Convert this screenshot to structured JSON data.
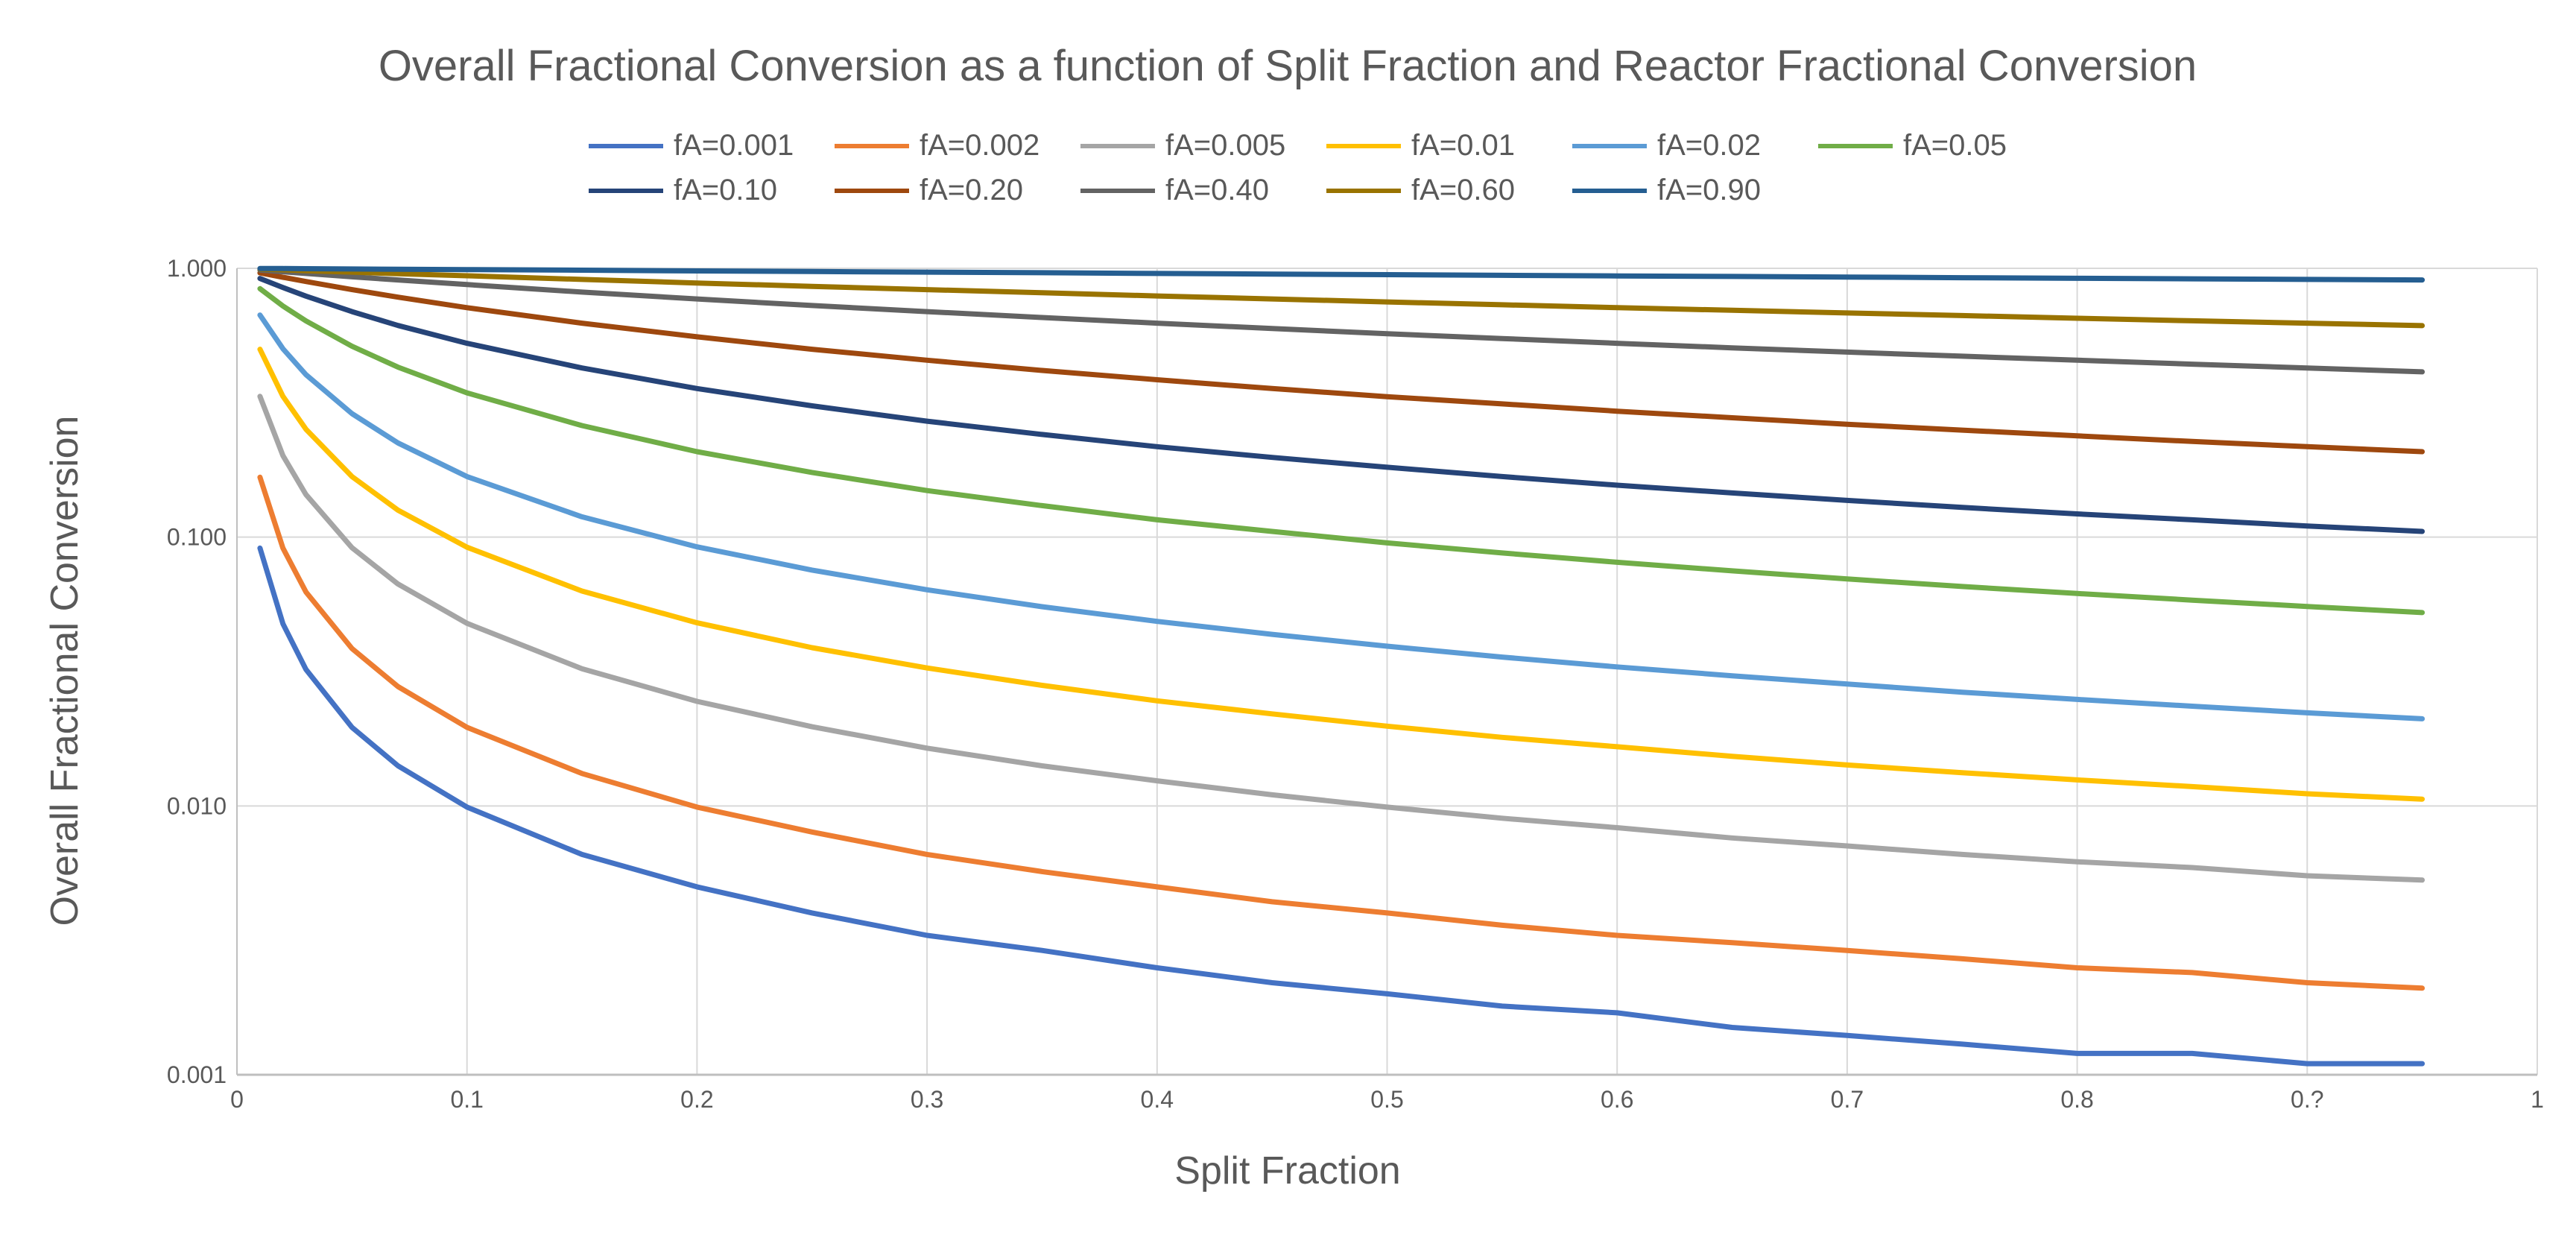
{
  "chart_data": {
    "type": "line",
    "title": "Overall Fractional Conversion as a function of Split Fraction and Reactor Fractional Conversion",
    "xlabel": "Split Fraction",
    "ylabel": "Overall Fractional Conversion",
    "xlim": [
      0,
      1
    ],
    "ylim": [
      0.001,
      1
    ],
    "yscale": "log",
    "grid": true,
    "legend_position": "top",
    "x_tick_labels": [
      "0",
      "0.1",
      "0.2",
      "0.3",
      "0.4",
      "0.5",
      "0.6",
      "0.7",
      "0.8",
      "0.?",
      "1"
    ],
    "y_tick_labels": [
      "0.001",
      "0.010",
      "0.100",
      "1.000"
    ],
    "x": [
      0.01,
      0.02,
      0.03,
      0.05,
      0.07,
      0.1,
      0.15,
      0.2,
      0.25,
      0.3,
      0.35,
      0.4,
      0.45,
      0.5,
      0.55,
      0.6,
      0.65,
      0.7,
      0.75,
      0.8,
      0.85,
      0.9,
      0.95
    ],
    "series": [
      {
        "name": "fA=0.001",
        "color": "#4472C4",
        "values": [
          0.091,
          0.0476,
          0.0322,
          0.0196,
          0.0141,
          0.0099,
          0.0066,
          0.005,
          0.004,
          0.0033,
          0.0029,
          0.0025,
          0.0022,
          0.002,
          0.0018,
          0.0017,
          0.0015,
          0.0014,
          0.0013,
          0.0012,
          0.0012,
          0.0011,
          0.0011
        ]
      },
      {
        "name": "fA=0.002",
        "color": "#ED7D31",
        "values": [
          0.167,
          0.091,
          0.0625,
          0.0385,
          0.0278,
          0.0196,
          0.0132,
          0.0099,
          0.008,
          0.0066,
          0.0057,
          0.005,
          0.0044,
          0.004,
          0.0036,
          0.0033,
          0.0031,
          0.0029,
          0.0027,
          0.0025,
          0.0024,
          0.0022,
          0.0021
        ]
      },
      {
        "name": "fA=0.005",
        "color": "#A5A5A5",
        "values": [
          0.334,
          0.201,
          0.144,
          0.0913,
          0.0669,
          0.0478,
          0.0324,
          0.0245,
          0.0197,
          0.0164,
          0.0141,
          0.0124,
          0.011,
          0.0099,
          0.009,
          0.0083,
          0.0076,
          0.0071,
          0.0066,
          0.0062,
          0.0059,
          0.0055,
          0.0053
        ]
      },
      {
        "name": "fA=0.01",
        "color": "#FFC000",
        "values": [
          0.5,
          0.334,
          0.252,
          0.168,
          0.126,
          0.0917,
          0.063,
          0.048,
          0.0388,
          0.0326,
          0.0281,
          0.0246,
          0.022,
          0.0198,
          0.018,
          0.0166,
          0.0153,
          0.0142,
          0.0133,
          0.0125,
          0.0118,
          0.0111,
          0.0106
        ]
      },
      {
        "name": "fA=0.02",
        "color": "#5B9BD5",
        "values": [
          0.67,
          0.502,
          0.402,
          0.288,
          0.224,
          0.168,
          0.119,
          0.092,
          0.0754,
          0.0637,
          0.0551,
          0.0486,
          0.0435,
          0.0393,
          0.0358,
          0.0329,
          0.0305,
          0.0284,
          0.0265,
          0.0249,
          0.0235,
          0.0222,
          0.0211
        ]
      },
      {
        "name": "fA=0.05",
        "color": "#70AD47",
        "values": [
          0.84,
          0.724,
          0.637,
          0.513,
          0.429,
          0.344,
          0.26,
          0.208,
          0.174,
          0.149,
          0.131,
          0.116,
          0.105,
          0.0952,
          0.0873,
          0.0806,
          0.0749,
          0.0699,
          0.0655,
          0.0617,
          0.0583,
          0.0552,
          0.0524
        ]
      },
      {
        "name": "fA=0.10",
        "color": "#264478",
        "values": [
          0.917,
          0.848,
          0.788,
          0.69,
          0.613,
          0.526,
          0.426,
          0.357,
          0.308,
          0.27,
          0.241,
          0.217,
          0.198,
          0.182,
          0.168,
          0.156,
          0.146,
          0.137,
          0.129,
          0.122,
          0.116,
          0.11,
          0.105
        ]
      },
      {
        "name": "fA=0.20",
        "color": "#9E480E",
        "values": [
          0.962,
          0.926,
          0.893,
          0.833,
          0.781,
          0.714,
          0.625,
          0.556,
          0.5,
          0.455,
          0.417,
          0.385,
          0.357,
          0.333,
          0.313,
          0.294,
          0.278,
          0.263,
          0.25,
          0.238,
          0.227,
          0.217,
          0.208
        ]
      },
      {
        "name": "fA=0.40",
        "color": "#636363",
        "values": [
          0.985,
          0.971,
          0.957,
          0.93,
          0.905,
          0.87,
          0.816,
          0.769,
          0.727,
          0.69,
          0.656,
          0.625,
          0.597,
          0.571,
          0.548,
          0.526,
          0.506,
          0.488,
          0.471,
          0.455,
          0.44,
          0.426,
          0.412
        ]
      },
      {
        "name": "fA=0.60",
        "color": "#997300",
        "values": [
          0.993,
          0.987,
          0.98,
          0.968,
          0.955,
          0.938,
          0.909,
          0.882,
          0.857,
          0.833,
          0.811,
          0.789,
          0.769,
          0.75,
          0.732,
          0.714,
          0.698,
          0.682,
          0.667,
          0.652,
          0.638,
          0.625,
          0.612
        ]
      },
      {
        "name": "fA=0.90",
        "color": "#255E91",
        "values": [
          0.999,
          0.998,
          0.997,
          0.994,
          0.992,
          0.989,
          0.984,
          0.978,
          0.973,
          0.968,
          0.963,
          0.957,
          0.952,
          0.947,
          0.942,
          0.937,
          0.933,
          0.928,
          0.923,
          0.918,
          0.914,
          0.909,
          0.905
        ]
      }
    ]
  }
}
